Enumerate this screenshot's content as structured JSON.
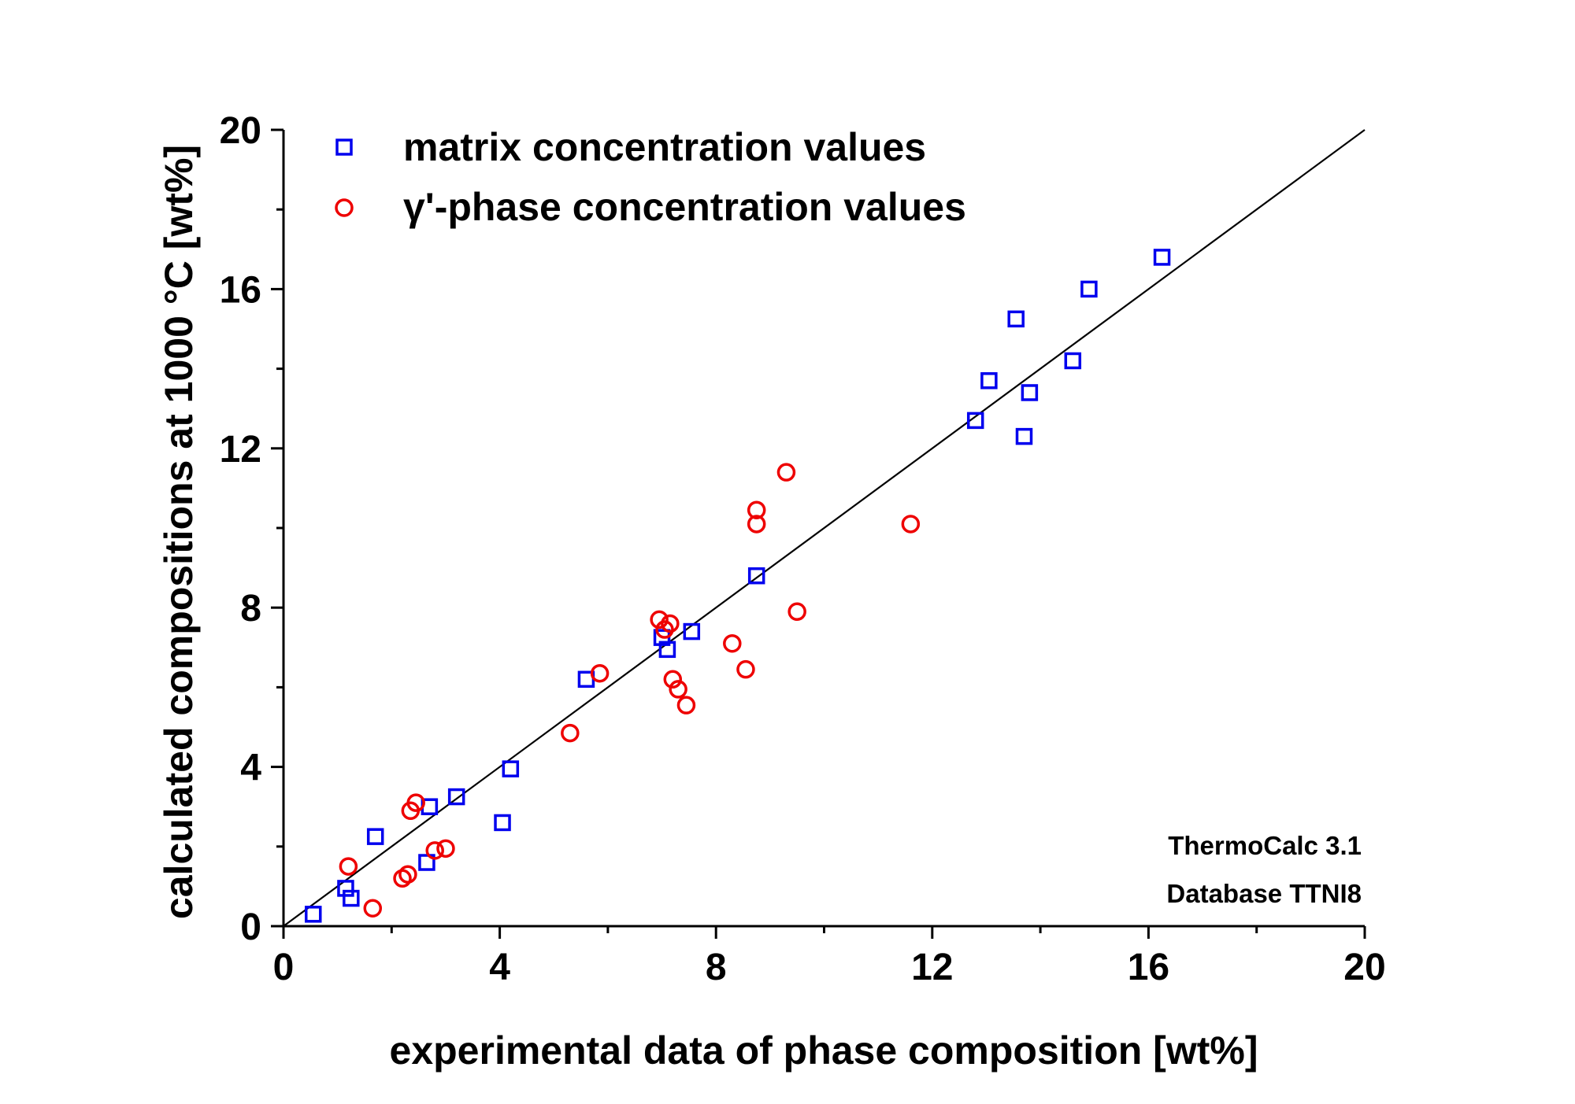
{
  "chart_data": {
    "type": "scatter",
    "xlabel": "experimental data of phase composition [wt%]",
    "ylabel": "calculated compositions at 1000 °C [wt%]",
    "xlim": [
      0,
      20
    ],
    "ylim": [
      0,
      20
    ],
    "xticks": [
      0,
      4,
      8,
      12,
      16,
      20
    ],
    "yticks": [
      0,
      4,
      8,
      12,
      16,
      20
    ],
    "xtick_labels": [
      "0",
      "4",
      "8",
      "12",
      "16",
      "20"
    ],
    "ytick_labels": [
      "0",
      "4",
      "8",
      "12",
      "16",
      "20"
    ],
    "grid": false,
    "legend_position": "top-left",
    "reference_line": {
      "slope": 1,
      "intercept": 0
    },
    "annotations": [
      "ThermoCalc 3.1",
      "Database TTNI8"
    ],
    "series": [
      {
        "name": "matrix concentration values",
        "marker": "square",
        "color": "#0000ee",
        "points": [
          [
            0.55,
            0.3
          ],
          [
            1.15,
            0.95
          ],
          [
            1.25,
            0.7
          ],
          [
            1.7,
            2.25
          ],
          [
            2.65,
            1.6
          ],
          [
            2.7,
            3.0
          ],
          [
            3.2,
            3.25
          ],
          [
            4.05,
            2.6
          ],
          [
            4.2,
            3.95
          ],
          [
            5.6,
            6.2
          ],
          [
            7.0,
            7.25
          ],
          [
            7.1,
            6.95
          ],
          [
            7.55,
            7.4
          ],
          [
            8.75,
            8.8
          ],
          [
            12.8,
            12.7
          ],
          [
            13.05,
            13.7
          ],
          [
            13.55,
            15.25
          ],
          [
            13.7,
            12.3
          ],
          [
            13.8,
            13.4
          ],
          [
            14.6,
            14.2
          ],
          [
            14.9,
            16.0
          ],
          [
            16.25,
            16.8
          ]
        ]
      },
      {
        "name": "γ'-phase concentration values",
        "marker": "circle",
        "color": "#ee0000",
        "points": [
          [
            1.2,
            1.5
          ],
          [
            1.65,
            0.45
          ],
          [
            2.2,
            1.2
          ],
          [
            2.3,
            1.3
          ],
          [
            2.35,
            2.9
          ],
          [
            2.45,
            3.1
          ],
          [
            2.8,
            1.9
          ],
          [
            3.0,
            1.95
          ],
          [
            5.3,
            4.85
          ],
          [
            5.85,
            6.35
          ],
          [
            6.95,
            7.7
          ],
          [
            7.05,
            7.45
          ],
          [
            7.15,
            7.6
          ],
          [
            7.2,
            6.2
          ],
          [
            7.3,
            5.95
          ],
          [
            7.45,
            5.55
          ],
          [
            8.3,
            7.1
          ],
          [
            8.55,
            6.45
          ],
          [
            8.75,
            10.1
          ],
          [
            8.75,
            10.45
          ],
          [
            9.3,
            11.4
          ],
          [
            9.5,
            7.9
          ],
          [
            11.6,
            10.1
          ]
        ]
      }
    ]
  }
}
